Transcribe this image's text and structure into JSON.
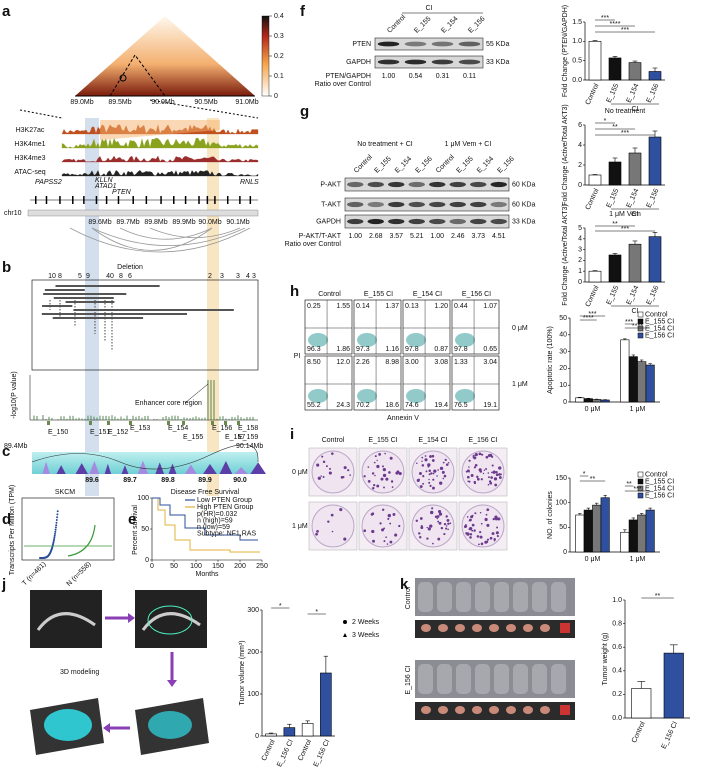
{
  "panel_labels": [
    "a",
    "b",
    "c",
    "d",
    "e",
    "f",
    "g",
    "h",
    "i",
    "j",
    "k"
  ],
  "a": {
    "colorbar_ticks": [
      0,
      0.1,
      0.2,
      0.3,
      0.4
    ],
    "genome_ticks": [
      "89.0Mb",
      "89.5Mb",
      "90.0Mb",
      "90.5Mb",
      "91.0Mb"
    ],
    "tracks": [
      "H3K27ac",
      "H3K4me1",
      "H3K4me3",
      "ATAC-seq"
    ],
    "genes": [
      "PAPSS2",
      "KLLN",
      "ATAD1",
      "PTEN",
      "RNLS"
    ],
    "chr": "chr10",
    "coords": [
      "89.6Mb",
      "89.7Mb",
      "89.8Mb",
      "89.9Mb",
      "90.0Mb",
      "90.1Mb"
    ]
  },
  "b": {
    "top_numbers": [
      "10",
      "8",
      "5",
      "9",
      "40",
      "8",
      "6",
      "2",
      "3",
      "3",
      "4",
      "3"
    ],
    "deletion": "Deletion",
    "ylabel": "-log10(P value)",
    "annotation": "Enhancer core region",
    "enhancers": [
      "E_150",
      "E_151",
      "E_152",
      "E_153",
      "E_154",
      "E_155",
      "E_156",
      "E_157",
      "E_158",
      "E_159"
    ],
    "range": [
      "89.4Mb",
      "90.14Mb"
    ]
  },
  "c": {
    "ticks": [
      "89.6",
      "89.7",
      "89.8",
      "89.9",
      "90.0"
    ]
  },
  "d": {
    "title": "SKCM",
    "ylabel": "Transcripts Per Million (TPM)",
    "xlabels": [
      "T (n=461)",
      "N (n=558)"
    ]
  },
  "e": {
    "title": "Disease Free Survival",
    "legend": [
      "Low PTEN Group",
      "High PTEN Group"
    ],
    "stats": [
      "p(HR)=0.032",
      "n (high)=59",
      "n (low)=59",
      "Subtype: NF1,RAS"
    ],
    "ylabel": "Percent survival",
    "xlabel": "Months",
    "xticks": [
      0,
      50,
      100,
      150,
      200,
      250
    ],
    "yticks": [
      0,
      50,
      100
    ]
  },
  "f": {
    "blot": {
      "header": "CI",
      "lanes": [
        "Control",
        "E_155",
        "E_154",
        "E_156"
      ],
      "rows": [
        "PTEN",
        "GAPDH"
      ],
      "kda": [
        "55 KDa",
        "33 KDa"
      ],
      "ratio_label": [
        "PTEN/GAPDH",
        "Ratio over Control"
      ],
      "ratios": [
        "1.00",
        "0.54",
        "0.31",
        "0.11"
      ]
    },
    "chart": {
      "ylabel": "Fold Change (PTEN/GAPDH)",
      "group_label": "CI",
      "categories": [
        "Control",
        "E_155",
        "E_154",
        "E_156"
      ],
      "values": [
        1.0,
        0.57,
        0.45,
        0.22
      ],
      "errors": [
        0.02,
        0.04,
        0.04,
        0.09
      ],
      "colors": [
        "#ffffff",
        "#111111",
        "#777777",
        "#2f4f9f"
      ],
      "ylim": [
        0,
        1.5
      ],
      "yticks": [
        {
          "value": 0,
          "label": "0.0"
        },
        {
          "value": 0.5,
          "label": "0.5"
        },
        {
          "value": 1,
          "label": "1.0"
        },
        {
          "value": 1.5,
          "label": "1.5"
        }
      ],
      "stars": [
        "***",
        "****",
        "***"
      ]
    }
  },
  "g": {
    "blot": {
      "headers": [
        "No treatment + CI",
        "1 μM Vem + CI"
      ],
      "lanes": [
        "Control",
        "E_155",
        "E_154",
        "E_156",
        "Control",
        "E_155",
        "E_154",
        "E_156"
      ],
      "rows": [
        "P-AKT",
        "T-AKT",
        "GAPDH"
      ],
      "kda": [
        "60 KDa",
        "60 KDa",
        "33 KDa"
      ],
      "ratio_label": [
        "P-AKT/T-AKT",
        "Ratio over Control"
      ],
      "ratios": [
        "1.00",
        "2.68",
        "3.57",
        "5.21",
        "1.00",
        "2.46",
        "3.73",
        "4.51"
      ]
    },
    "chart_top": {
      "title": "No treatment",
      "ylabel": "Fold Change (Active/Total AKT3)",
      "group_label": "CI",
      "categories": [
        "Control",
        "E_155",
        "E_154",
        "E_156"
      ],
      "values": [
        1.0,
        2.3,
        3.2,
        4.8
      ],
      "errors": [
        0.05,
        0.4,
        0.5,
        0.6
      ],
      "colors": [
        "#ffffff",
        "#111111",
        "#777777",
        "#2f4f9f"
      ],
      "ylim": [
        0,
        6
      ],
      "yticks": [
        0,
        2,
        4,
        6
      ],
      "stars": [
        "*",
        "**",
        "***"
      ]
    },
    "chart_bottom": {
      "title": "1 μM Vem",
      "ylabel": "Fold Change (Active/Total AKT3)",
      "group_label": "CI",
      "categories": [
        "Control",
        "E_155",
        "E_154",
        "E_156"
      ],
      "values": [
        1.0,
        2.5,
        3.5,
        4.2
      ],
      "errors": [
        0.05,
        0.15,
        0.3,
        0.4
      ],
      "colors": [
        "#ffffff",
        "#111111",
        "#777777",
        "#2f4f9f"
      ],
      "ylim": [
        0,
        5
      ],
      "yticks": [
        0,
        1,
        2,
        3,
        4,
        5
      ],
      "stars": [
        "**",
        "***"
      ]
    }
  },
  "h": {
    "flow": {
      "columns": [
        "Control",
        "E_155 CI",
        "E_154 CI",
        "E_156 CI"
      ],
      "rows": [
        "0 μM",
        "1 μM"
      ],
      "ylabel": "PI",
      "xlabel": "Annexin V",
      "quadrants": [
        [
          [
            "0.25",
            "1.55",
            "96.3",
            "1.86"
          ],
          [
            "0.14",
            "1.37",
            "97.3",
            "1.16"
          ],
          [
            "0.13",
            "1.20",
            "97.8",
            "0.87"
          ],
          [
            "0.44",
            "1.07",
            "97.8",
            "0.65"
          ]
        ],
        [
          [
            "8.50",
            "12.0",
            "55.2",
            "24.3"
          ],
          [
            "2.26",
            "8.98",
            "70.2",
            "18.6"
          ],
          [
            "3.00",
            "3.08",
            "74.6",
            "19.4"
          ],
          [
            "1.33",
            "3.04",
            "76.5",
            "19.1"
          ]
        ]
      ]
    },
    "chart": {
      "ylabel": "Apoptotic rate (100%)",
      "groups": [
        "0 μM",
        "1 μM"
      ],
      "series": [
        {
          "name": "Control",
          "color": "#ffffff",
          "values": [
            2.5,
            37
          ],
          "errors": [
            0.3,
            0.6
          ]
        },
        {
          "name": "E_155 CI",
          "color": "#111111",
          "values": [
            2.0,
            27
          ],
          "errors": [
            0.2,
            1.0
          ]
        },
        {
          "name": "E_154 CI",
          "color": "#777777",
          "values": [
            1.5,
            24
          ],
          "errors": [
            0.2,
            1.0
          ]
        },
        {
          "name": "E_156 CI",
          "color": "#2f4f9f",
          "values": [
            1.2,
            22
          ],
          "errors": [
            0.2,
            0.8
          ]
        }
      ],
      "ylim": [
        0,
        50
      ],
      "yticks": [
        0,
        10,
        20,
        30,
        40,
        50
      ],
      "stars": [
        "***",
        "****",
        "***",
        "****"
      ]
    }
  },
  "i": {
    "plates": {
      "columns": [
        "Control",
        "E_155 CI",
        "E_154 CI",
        "E_156 CI"
      ],
      "rows": [
        "0 μM",
        "1 μM"
      ]
    },
    "chart": {
      "ylabel": "NO. of colonies",
      "groups": [
        "0 μM",
        "1 μM"
      ],
      "series": [
        {
          "name": "Control",
          "color": "#ffffff",
          "values": [
            75,
            40
          ],
          "errors": [
            3,
            5
          ]
        },
        {
          "name": "E_155 CI",
          "color": "#111111",
          "values": [
            85,
            65
          ],
          "errors": [
            4,
            4
          ]
        },
        {
          "name": "E_154 CI",
          "color": "#777777",
          "values": [
            95,
            75
          ],
          "errors": [
            4,
            3
          ]
        },
        {
          "name": "E_156 CI",
          "color": "#2f4f9f",
          "values": [
            110,
            85
          ],
          "errors": [
            5,
            4
          ]
        }
      ],
      "ylim": [
        0,
        150
      ],
      "yticks": [
        0,
        50,
        100,
        150
      ],
      "stars": [
        "*",
        "**",
        "**",
        "***"
      ]
    }
  },
  "j": {
    "modeling": "3D modeling",
    "chart": {
      "ylabel": "Tumor volume (mm³)",
      "categories": [
        "Control",
        "E_156 CI",
        "Control",
        "E_156 CI"
      ],
      "values": [
        5,
        20,
        30,
        150
      ],
      "errors": [
        2,
        8,
        6,
        40
      ],
      "colors": [
        "#ffffff",
        "#2f4f9f",
        "#ffffff",
        "#2f4f9f"
      ],
      "ylim": [
        0,
        300
      ],
      "yticks": [
        0,
        100,
        200,
        300
      ],
      "legend": [
        "2 Weeks",
        "3 Weeks"
      ],
      "stars": [
        "*",
        "*"
      ]
    }
  },
  "k": {
    "rows": [
      "Control",
      "E_156 CI"
    ],
    "chart": {
      "ylabel": "Tumor weight (g)",
      "categories": [
        "Control",
        "E_156 CI"
      ],
      "values": [
        0.25,
        0.55
      ],
      "errors": [
        0.06,
        0.07
      ],
      "colors": [
        "#ffffff",
        "#2f4f9f"
      ],
      "ylim": [
        0,
        1
      ],
      "yticks": [
        {
          "value": 0,
          "label": "0.0"
        },
        {
          "value": 0.2,
          "label": "0.2"
        },
        {
          "value": 0.4,
          "label": "0.4"
        },
        {
          "value": 0.6,
          "label": "0.6"
        },
        {
          "value": 0.8,
          "label": "0.8"
        },
        {
          "value": 1,
          "label": "1.0"
        }
      ],
      "stars": [
        "**"
      ]
    }
  }
}
